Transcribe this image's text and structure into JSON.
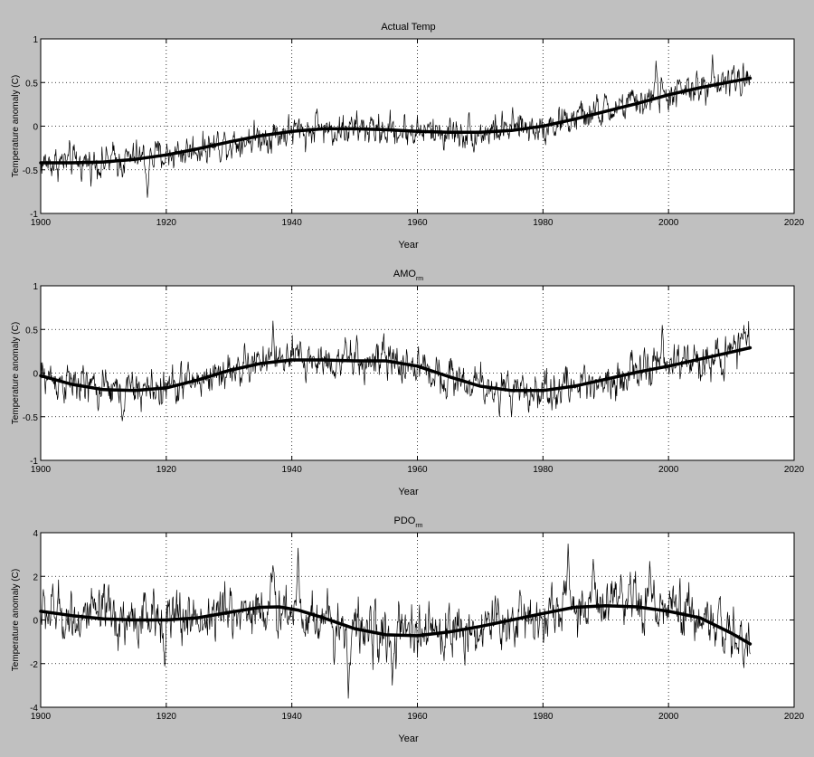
{
  "figure": {
    "background": "#c0c0c0",
    "axes_background": "#ffffff",
    "line_color": "#000000"
  },
  "chart_data": [
    {
      "type": "line",
      "title": "Actual Temp",
      "title_subscript": "",
      "xlabel": "Year",
      "ylabel": "Temperature anomaly (C)",
      "xlim": [
        1900,
        2020
      ],
      "ylim": [
        -1,
        1
      ],
      "xticks": [
        1900,
        1920,
        1940,
        1960,
        1980,
        2000,
        2020
      ],
      "yticks": [
        -1,
        -0.5,
        0,
        0.5,
        1
      ],
      "grid": true,
      "series": [
        {
          "style": "thin-noisy",
          "x_start": 1900,
          "x_end": 2013,
          "samples_per_year": 12,
          "trend": [
            [
              1900,
              -0.42
            ],
            [
              1910,
              -0.41
            ],
            [
              1920,
              -0.33
            ],
            [
              1930,
              -0.18
            ],
            [
              1940,
              -0.06
            ],
            [
              1950,
              -0.03
            ],
            [
              1960,
              -0.06
            ],
            [
              1970,
              -0.07
            ],
            [
              1980,
              0.0
            ],
            [
              1990,
              0.17
            ],
            [
              2000,
              0.36
            ],
            [
              2013,
              0.55
            ]
          ],
          "noise_amplitude": 0.12,
          "peaks": [
            [
              1917,
              -0.82
            ],
            [
              1944,
              0.2
            ],
            [
              1998,
              0.75
            ],
            [
              2007,
              0.82
            ]
          ]
        },
        {
          "style": "thick-smooth",
          "points": [
            [
              1900,
              -0.42
            ],
            [
              1905,
              -0.42
            ],
            [
              1910,
              -0.41
            ],
            [
              1915,
              -0.38
            ],
            [
              1920,
              -0.33
            ],
            [
              1925,
              -0.26
            ],
            [
              1930,
              -0.18
            ],
            [
              1935,
              -0.11
            ],
            [
              1940,
              -0.06
            ],
            [
              1945,
              -0.03
            ],
            [
              1950,
              -0.03
            ],
            [
              1955,
              -0.04
            ],
            [
              1960,
              -0.06
            ],
            [
              1965,
              -0.07
            ],
            [
              1970,
              -0.07
            ],
            [
              1975,
              -0.05
            ],
            [
              1980,
              0.0
            ],
            [
              1985,
              0.08
            ],
            [
              1990,
              0.17
            ],
            [
              1995,
              0.26
            ],
            [
              2000,
              0.36
            ],
            [
              2005,
              0.44
            ],
            [
              2010,
              0.51
            ],
            [
              2013,
              0.55
            ]
          ]
        }
      ]
    },
    {
      "type": "line",
      "title": "AMO",
      "title_subscript": "rm",
      "xlabel": "Year",
      "ylabel": "Temperature anomaly (C)",
      "xlim": [
        1900,
        2020
      ],
      "ylim": [
        -1,
        1
      ],
      "xticks": [
        1900,
        1920,
        1940,
        1960,
        1980,
        2000,
        2020
      ],
      "yticks": [
        -1,
        -0.5,
        0,
        0.5,
        1
      ],
      "grid": true,
      "series": [
        {
          "style": "thin-noisy",
          "x_start": 1900,
          "x_end": 2013,
          "samples_per_year": 12,
          "trend": [
            [
              1900,
              -0.03
            ],
            [
              1905,
              -0.13
            ],
            [
              1910,
              -0.19
            ],
            [
              1915,
              -0.2
            ],
            [
              1920,
              -0.17
            ],
            [
              1925,
              -0.08
            ],
            [
              1930,
              0.03
            ],
            [
              1935,
              0.11
            ],
            [
              1940,
              0.15
            ],
            [
              1945,
              0.15
            ],
            [
              1950,
              0.14
            ],
            [
              1955,
              0.14
            ],
            [
              1960,
              0.08
            ],
            [
              1965,
              -0.04
            ],
            [
              1970,
              -0.15
            ],
            [
              1975,
              -0.2
            ],
            [
              1980,
              -0.2
            ],
            [
              1985,
              -0.15
            ],
            [
              1990,
              -0.07
            ],
            [
              1995,
              0.01
            ],
            [
              2000,
              0.08
            ],
            [
              2005,
              0.16
            ],
            [
              2013,
              0.29
            ]
          ],
          "noise_amplitude": 0.14,
          "peaks": [
            [
              1913,
              -0.55
            ],
            [
              1937,
              0.6
            ],
            [
              1975,
              -0.5
            ],
            [
              1999,
              0.55
            ],
            [
              2012,
              0.55
            ]
          ]
        },
        {
          "style": "thick-smooth",
          "points": [
            [
              1900,
              -0.03
            ],
            [
              1905,
              -0.13
            ],
            [
              1910,
              -0.19
            ],
            [
              1915,
              -0.2
            ],
            [
              1920,
              -0.17
            ],
            [
              1925,
              -0.08
            ],
            [
              1930,
              0.03
            ],
            [
              1935,
              0.11
            ],
            [
              1940,
              0.15
            ],
            [
              1945,
              0.15
            ],
            [
              1950,
              0.14
            ],
            [
              1955,
              0.14
            ],
            [
              1960,
              0.08
            ],
            [
              1965,
              -0.04
            ],
            [
              1970,
              -0.15
            ],
            [
              1975,
              -0.2
            ],
            [
              1980,
              -0.2
            ],
            [
              1985,
              -0.15
            ],
            [
              1990,
              -0.07
            ],
            [
              1995,
              0.01
            ],
            [
              2000,
              0.08
            ],
            [
              2005,
              0.16
            ],
            [
              2010,
              0.24
            ],
            [
              2013,
              0.29
            ]
          ]
        }
      ]
    },
    {
      "type": "line",
      "title": "PDO",
      "title_subscript": "rm",
      "xlabel": "Year",
      "ylabel": "Temperature anomaly (C)",
      "xlim": [
        1900,
        2020
      ],
      "ylim": [
        -4,
        4
      ],
      "xticks": [
        1900,
        1920,
        1940,
        1960,
        1980,
        2000,
        2020
      ],
      "yticks": [
        -4,
        -2,
        0,
        2,
        4
      ],
      "grid": true,
      "series": [
        {
          "style": "thin-noisy",
          "x_start": 1900,
          "x_end": 2013,
          "samples_per_year": 12,
          "trend": [
            [
              1900,
              0.4
            ],
            [
              1905,
              0.2
            ],
            [
              1910,
              0.05
            ],
            [
              1915,
              0.0
            ],
            [
              1920,
              0.0
            ],
            [
              1925,
              0.1
            ],
            [
              1930,
              0.35
            ],
            [
              1935,
              0.6
            ],
            [
              1938,
              0.6
            ],
            [
              1945,
              0.1
            ],
            [
              1950,
              -0.4
            ],
            [
              1955,
              -0.7
            ],
            [
              1960,
              -0.7
            ],
            [
              1965,
              -0.5
            ],
            [
              1970,
              -0.3
            ],
            [
              1975,
              0.0
            ],
            [
              1980,
              0.3
            ],
            [
              1985,
              0.6
            ],
            [
              1990,
              0.65
            ],
            [
              1995,
              0.6
            ],
            [
              2000,
              0.4
            ],
            [
              2005,
              0.1
            ],
            [
              2010,
              -0.6
            ],
            [
              2013,
              -1.1
            ]
          ],
          "noise_amplitude": 0.8,
          "peaks": [
            [
              1937,
              2.5
            ],
            [
              1941,
              3.3
            ],
            [
              1949,
              -3.6
            ],
            [
              1956,
              -3.0
            ],
            [
              1984,
              3.5
            ],
            [
              1988,
              2.8
            ],
            [
              1997,
              2.7
            ],
            [
              2012,
              -2.2
            ]
          ]
        },
        {
          "style": "thick-smooth",
          "points": [
            [
              1900,
              0.4
            ],
            [
              1905,
              0.2
            ],
            [
              1910,
              0.05
            ],
            [
              1915,
              0.0
            ],
            [
              1920,
              0.0
            ],
            [
              1925,
              0.1
            ],
            [
              1930,
              0.35
            ],
            [
              1935,
              0.58
            ],
            [
              1938,
              0.6
            ],
            [
              1941,
              0.45
            ],
            [
              1945,
              0.1
            ],
            [
              1950,
              -0.4
            ],
            [
              1955,
              -0.68
            ],
            [
              1960,
              -0.72
            ],
            [
              1965,
              -0.55
            ],
            [
              1970,
              -0.3
            ],
            [
              1975,
              0.0
            ],
            [
              1980,
              0.3
            ],
            [
              1985,
              0.58
            ],
            [
              1990,
              0.65
            ],
            [
              1995,
              0.6
            ],
            [
              2000,
              0.4
            ],
            [
              2005,
              0.1
            ],
            [
              2010,
              -0.6
            ],
            [
              2013,
              -1.1
            ]
          ]
        }
      ]
    }
  ]
}
